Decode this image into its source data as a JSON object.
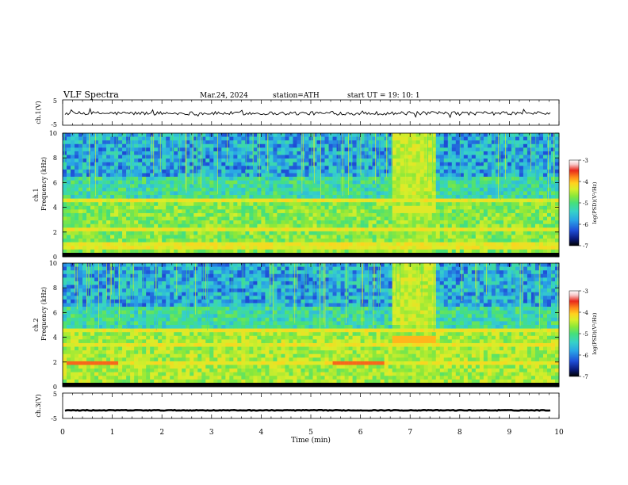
{
  "header": {
    "title": "VLF  Spectra",
    "date": "Mar.24, 2024",
    "station": "station=ATH",
    "start": "start  UT  =   19: 10: 1"
  },
  "colors": {
    "colormap": [
      "#000000",
      "#0a1a7a",
      "#1f4fd8",
      "#2aa6e6",
      "#36d2c8",
      "#46e07a",
      "#8ae83a",
      "#d8ee2a",
      "#ffd21e",
      "#ff8a1a",
      "#e8281c",
      "#f7c8c8",
      "#ffffff"
    ]
  },
  "chart_data": [
    {
      "type": "line",
      "name": "ch1-waveform",
      "ylabel": "ch.1(V)",
      "ylim": [
        -5,
        5
      ],
      "yticks": [
        "5",
        "-5"
      ],
      "xlim": [
        0,
        10
      ],
      "baseline": -0.3,
      "amplitude": 0.7
    },
    {
      "type": "heatmap",
      "name": "ch1-spectrogram",
      "ylabel": "ch.1\nFrequency (kHz)",
      "ylim": [
        0,
        10
      ],
      "yticks": [
        "0",
        "2",
        "4",
        "6",
        "8",
        "10"
      ],
      "xlim": [
        0,
        10
      ],
      "colorbar": {
        "label": "log(PSD)(V²/Hz)",
        "range": [
          -7,
          -3
        ],
        "ticks": [
          "-3",
          "-4",
          "-5",
          "-6",
          "-7"
        ]
      },
      "bands_khz": [
        2.2,
        4.6,
        0.9
      ]
    },
    {
      "type": "heatmap",
      "name": "ch2-spectrogram",
      "ylabel": "ch.2\nFrequency (kHz)",
      "ylim": [
        0,
        10
      ],
      "yticks": [
        "0",
        "2",
        "4",
        "6",
        "8",
        "10"
      ],
      "xlim": [
        0,
        10
      ],
      "colorbar": {
        "label": "log(PSD)(V²/Hz)",
        "range": [
          -7,
          -3
        ],
        "ticks": [
          "-3",
          "-4",
          "-5",
          "-6",
          "-7"
        ]
      },
      "bands_khz": [
        2.0,
        3.5,
        4.5
      ]
    },
    {
      "type": "line",
      "name": "ch3-waveform",
      "ylabel": "ch.3(V)",
      "ylim": [
        -5,
        5
      ],
      "yticks": [
        "5",
        "-5"
      ],
      "xlim": [
        0,
        10
      ],
      "xlabel": "Time  (min)",
      "xticks": [
        "0",
        "1",
        "2",
        "3",
        "4",
        "5",
        "6",
        "7",
        "8",
        "9",
        "10"
      ],
      "baseline": -1.8,
      "amplitude": 0.15
    }
  ]
}
